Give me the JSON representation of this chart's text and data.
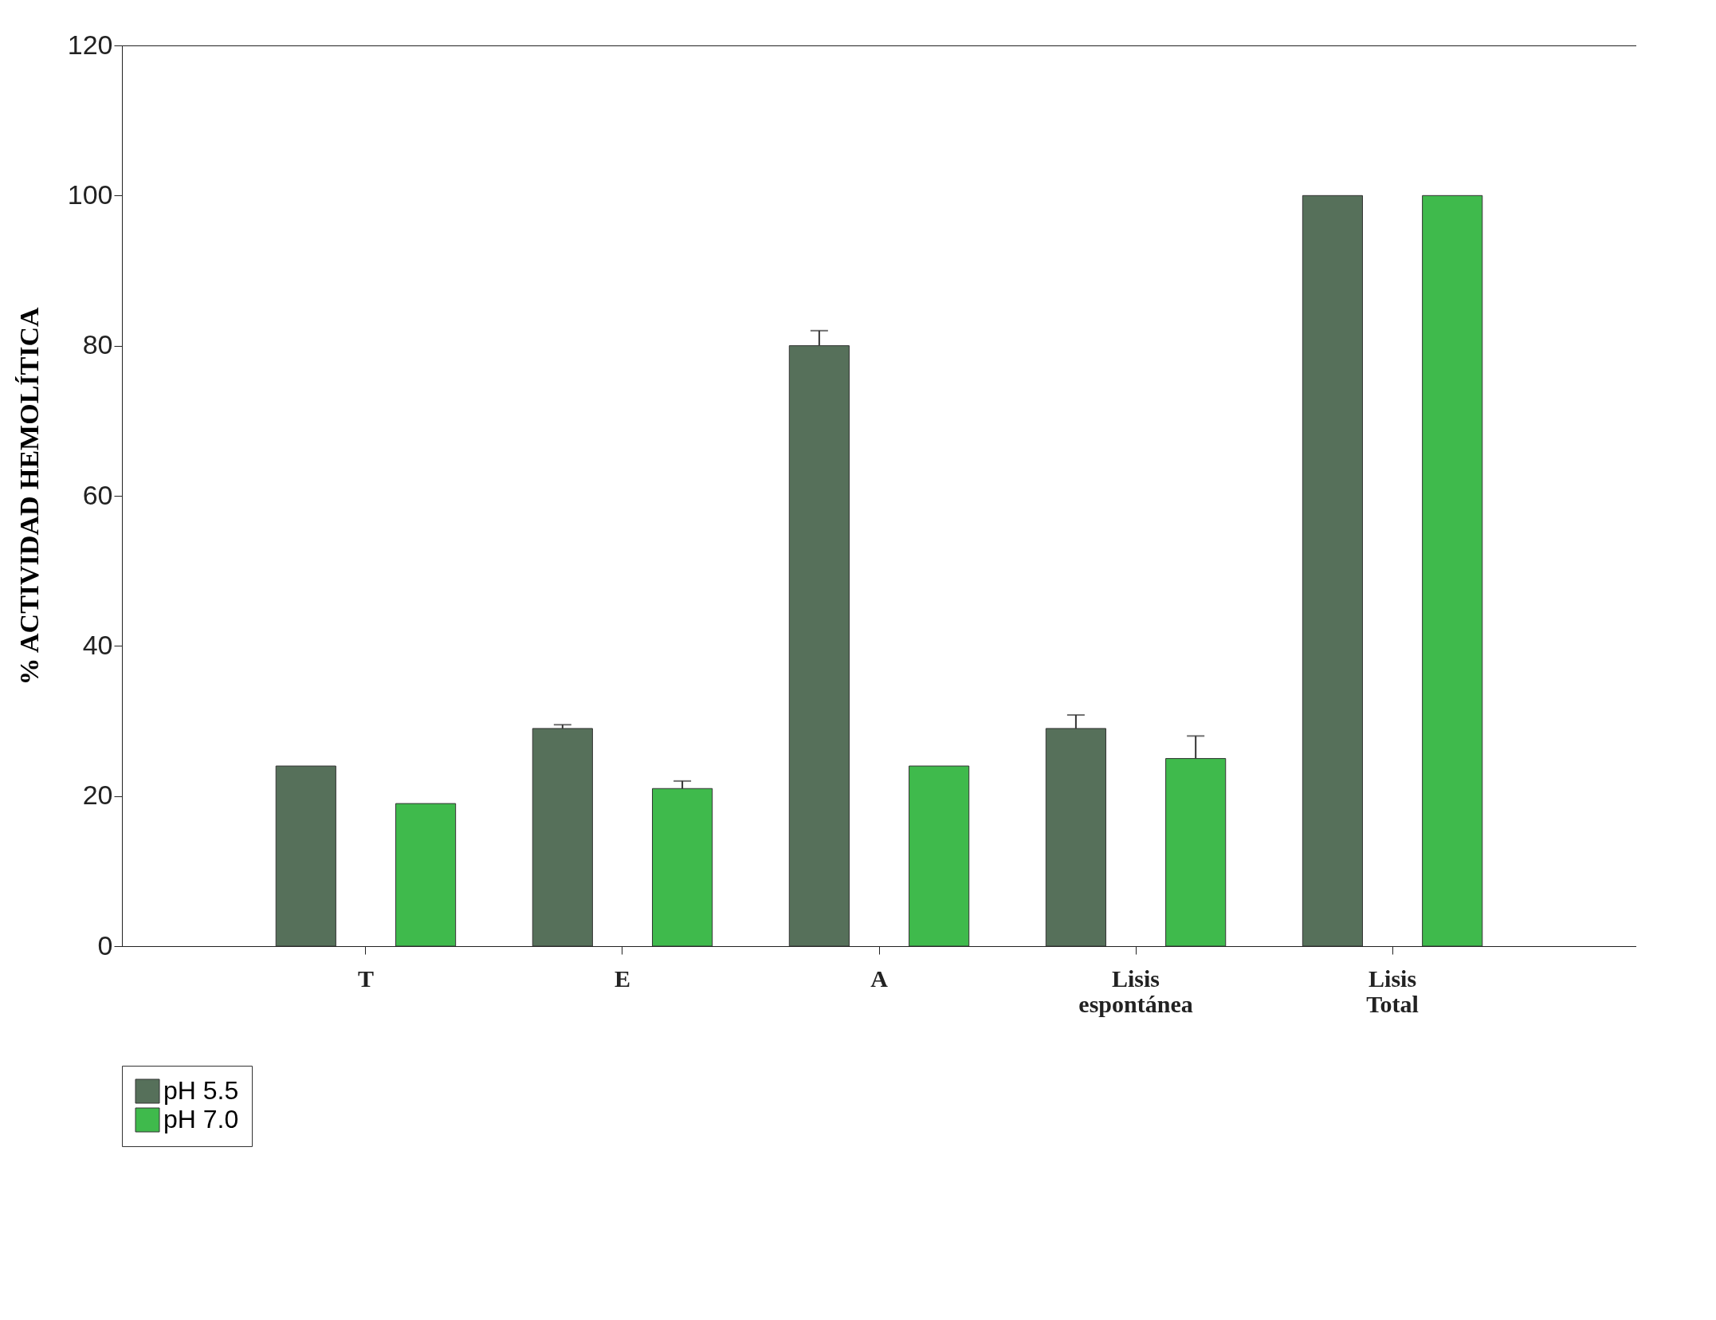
{
  "chart_data": {
    "type": "bar",
    "ylabel": "% ACTIVIDAD HEMOLÍTICA",
    "categories": [
      "T",
      "E",
      "A",
      "Lisis espontánea",
      "Lisis Total"
    ],
    "series": [
      {
        "name": "pH 5.5",
        "color": "#56705a",
        "values": [
          24,
          29,
          80,
          29,
          100
        ],
        "errors": [
          null,
          0.5,
          2,
          1.8,
          null
        ]
      },
      {
        "name": "pH 7.0",
        "color": "#3fba4c",
        "values": [
          19,
          21,
          24,
          25,
          100
        ],
        "errors": [
          null,
          1,
          null,
          3,
          null
        ]
      }
    ],
    "ylim": [
      0,
      120
    ],
    "yticks": [
      0,
      20,
      40,
      60,
      80,
      100,
      120
    ],
    "grid": false,
    "legend": "bottom left"
  }
}
